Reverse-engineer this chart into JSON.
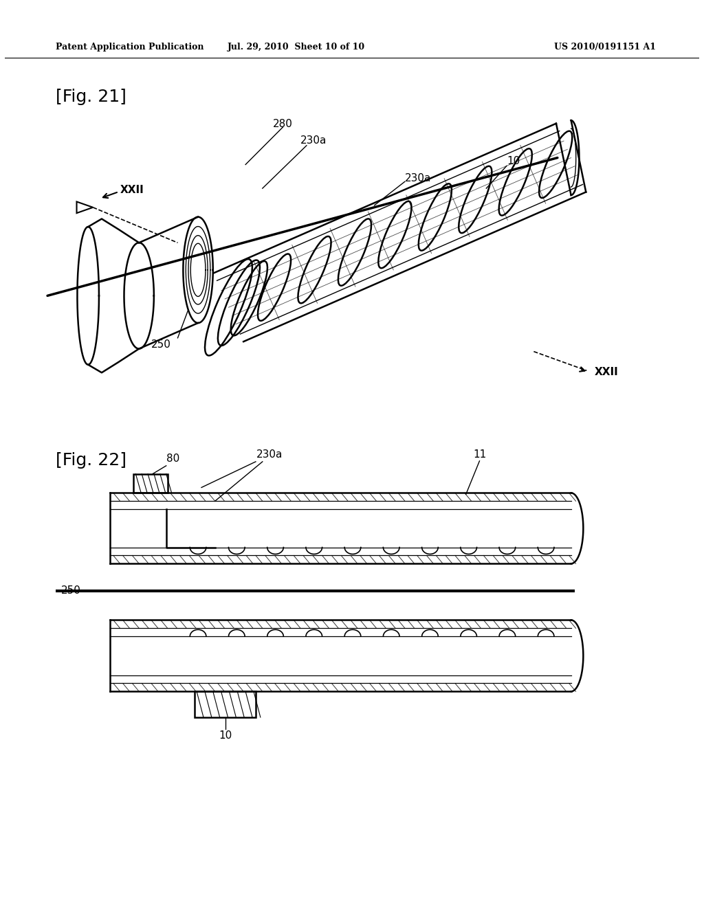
{
  "background_color": "#ffffff",
  "header_left": "Patent Application Publication",
  "header_mid": "Jul. 29, 2010  Sheet 10 of 10",
  "header_right": "US 2010/0191151 A1",
  "fig21_label": "[Fig. 21]",
  "fig22_label": "[Fig. 22]"
}
